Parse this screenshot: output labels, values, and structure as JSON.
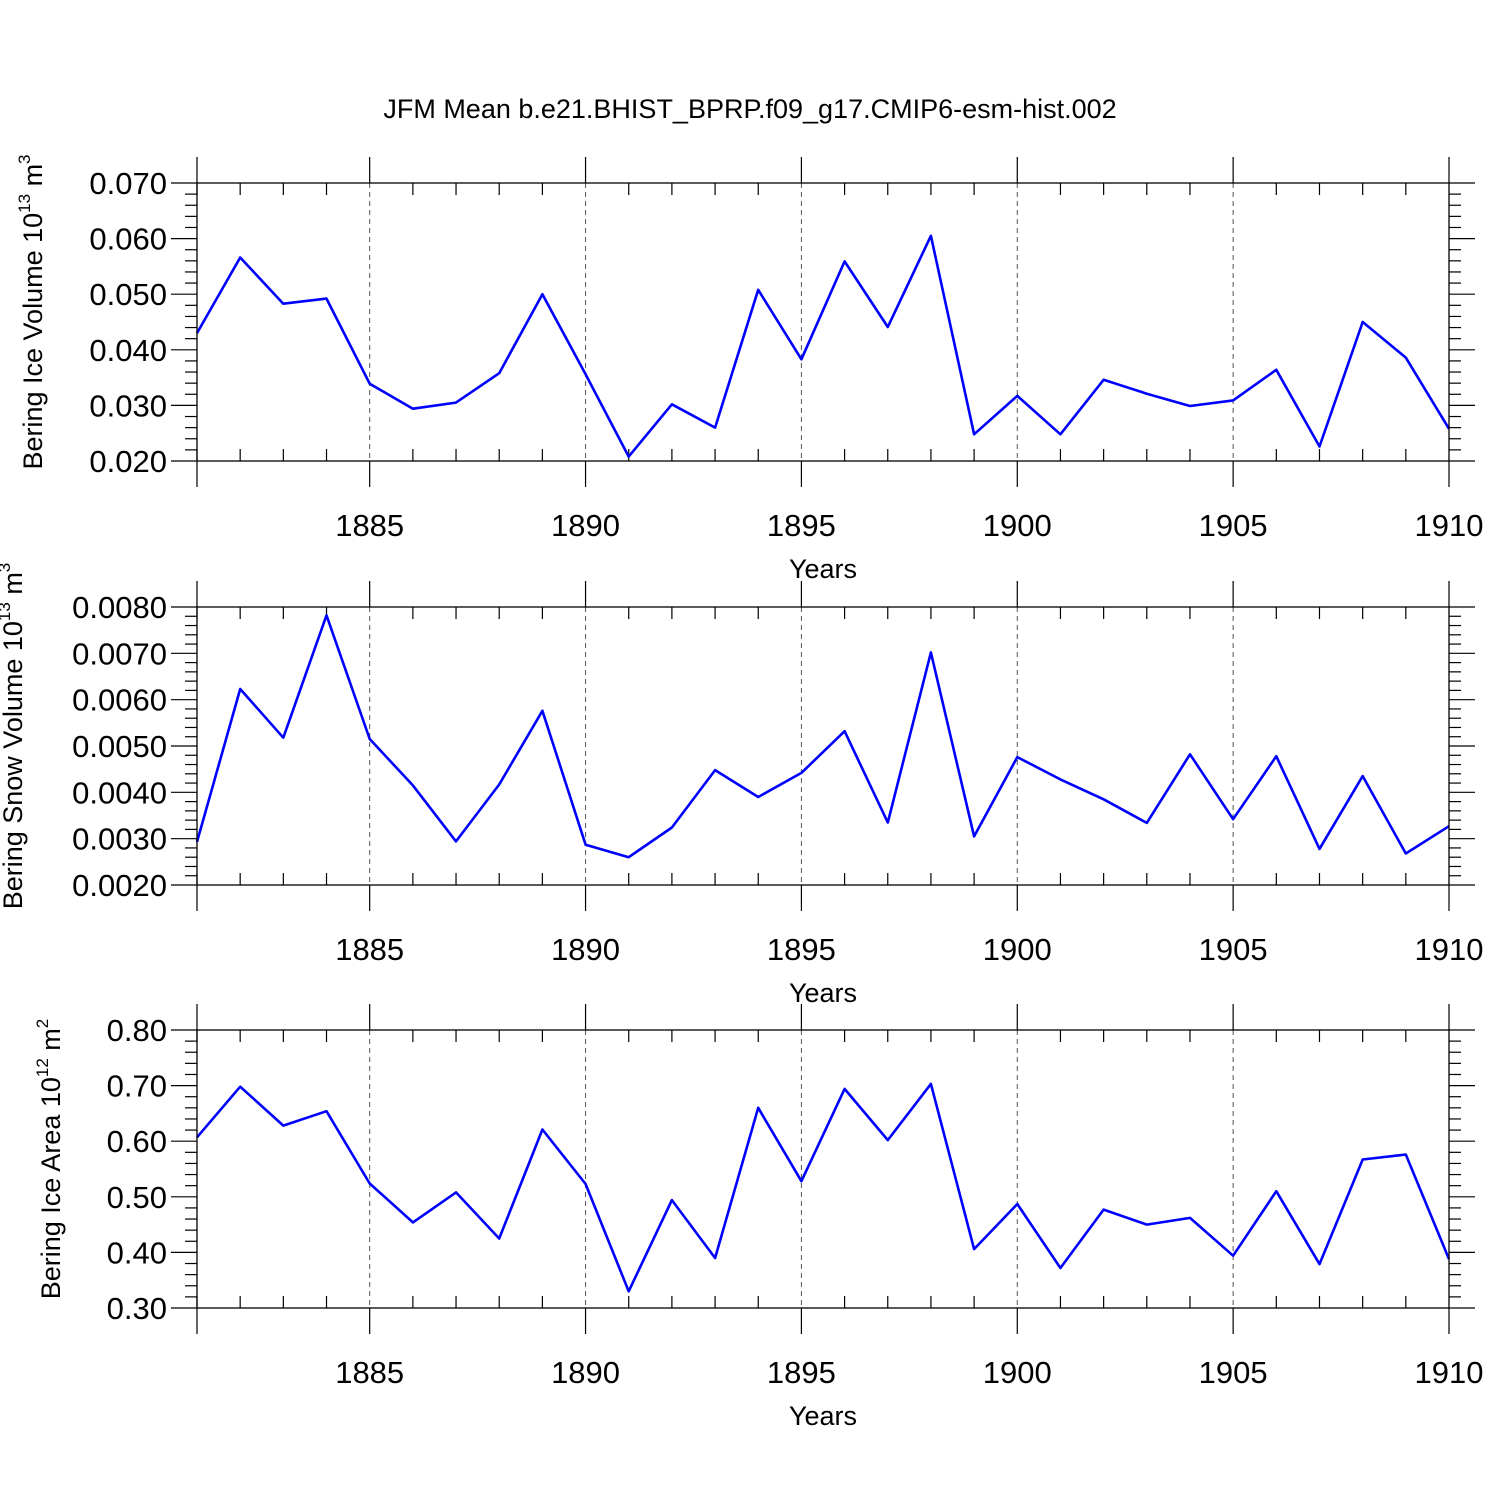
{
  "title": "JFM Mean b.e21.BHIST_BPRP.f09_g17.CMIP6-esm-hist.002",
  "colors": {
    "series": "#0000ff",
    "axis": "#000000",
    "grid": "#555555"
  },
  "chart_data": [
    {
      "type": "line",
      "ylabel": "Bering Ice Volume 10^13 m^3",
      "ylabel_parts": {
        "base": "Bering Ice Volume 10",
        "exp1": "13",
        "unit": " m",
        "exp2": "3"
      },
      "xlabel": "Years",
      "xlim": [
        1881,
        1910
      ],
      "ylim": [
        0.02,
        0.07
      ],
      "y_ticks": [
        0.02,
        0.03,
        0.04,
        0.05,
        0.06,
        0.07
      ],
      "y_tick_labels": [
        "0.020",
        "0.030",
        "0.040",
        "0.050",
        "0.060",
        "0.070"
      ],
      "x_ticks": [
        1885,
        1890,
        1895,
        1900,
        1905,
        1910
      ],
      "x_tick_labels": [
        "1885",
        "1890",
        "1895",
        "1900",
        "1905",
        "1910"
      ],
      "grid": "vertical dashed at major x ticks",
      "x": [
        1881,
        1882,
        1883,
        1884,
        1885,
        1886,
        1887,
        1888,
        1889,
        1890,
        1891,
        1892,
        1893,
        1894,
        1895,
        1896,
        1897,
        1898,
        1899,
        1900,
        1901,
        1902,
        1903,
        1904,
        1905,
        1906,
        1907,
        1908,
        1909,
        1910
      ],
      "values": [
        0.043,
        0.0566,
        0.0483,
        0.0492,
        0.0339,
        0.0294,
        0.0305,
        0.0358,
        0.05,
        0.0356,
        0.0208,
        0.0302,
        0.026,
        0.0508,
        0.0383,
        0.0559,
        0.0441,
        0.0605,
        0.0248,
        0.0317,
        0.0248,
        0.0346,
        0.0321,
        0.0299,
        0.0309,
        0.0364,
        0.0226,
        0.045,
        0.0386,
        0.0258
      ]
    },
    {
      "type": "line",
      "ylabel": "Bering Snow Volume 10^13 m^3",
      "ylabel_parts": {
        "base": "Bering Snow Volume 10",
        "exp1": "13",
        "unit": " m",
        "exp2": "3"
      },
      "xlabel": "Years",
      "xlim": [
        1881,
        1910
      ],
      "ylim": [
        0.002,
        0.008
      ],
      "y_ticks": [
        0.002,
        0.003,
        0.004,
        0.005,
        0.006,
        0.007,
        0.008
      ],
      "y_tick_labels": [
        "0.0020",
        "0.0030",
        "0.0040",
        "0.0050",
        "0.0060",
        "0.0070",
        "0.0080"
      ],
      "x_ticks": [
        1885,
        1890,
        1895,
        1900,
        1905,
        1910
      ],
      "x_tick_labels": [
        "1885",
        "1890",
        "1895",
        "1900",
        "1905",
        "1910"
      ],
      "grid": "vertical dashed at major x ticks",
      "x": [
        1881,
        1882,
        1883,
        1884,
        1885,
        1886,
        1887,
        1888,
        1889,
        1890,
        1891,
        1892,
        1893,
        1894,
        1895,
        1896,
        1897,
        1898,
        1899,
        1900,
        1901,
        1902,
        1903,
        1904,
        1905,
        1906,
        1907,
        1908,
        1909,
        1910
      ],
      "values": [
        0.00293,
        0.00623,
        0.00518,
        0.00782,
        0.00515,
        0.00415,
        0.00294,
        0.00417,
        0.00576,
        0.00287,
        0.0026,
        0.00324,
        0.00448,
        0.0039,
        0.00442,
        0.00532,
        0.00335,
        0.00702,
        0.00305,
        0.00476,
        0.00428,
        0.00385,
        0.00334,
        0.00482,
        0.00342,
        0.00478,
        0.00278,
        0.00435,
        0.00268,
        0.00327
      ]
    },
    {
      "type": "line",
      "ylabel": "Bering Ice Area 10^12 m^2",
      "ylabel_parts": {
        "base": "Bering Ice Area 10",
        "exp1": "12",
        "unit": " m",
        "exp2": "2"
      },
      "xlabel": "Years",
      "xlim": [
        1881,
        1910
      ],
      "ylim": [
        0.3,
        0.8
      ],
      "y_ticks": [
        0.3,
        0.4,
        0.5,
        0.6,
        0.7,
        0.8
      ],
      "y_tick_labels": [
        "0.30",
        "0.40",
        "0.50",
        "0.60",
        "0.70",
        "0.80"
      ],
      "x_ticks": [
        1885,
        1890,
        1895,
        1900,
        1905,
        1910
      ],
      "x_tick_labels": [
        "1885",
        "1890",
        "1895",
        "1900",
        "1905",
        "1910"
      ],
      "grid": "vertical dashed at major x ticks",
      "x": [
        1881,
        1882,
        1883,
        1884,
        1885,
        1886,
        1887,
        1888,
        1889,
        1890,
        1891,
        1892,
        1893,
        1894,
        1895,
        1896,
        1897,
        1898,
        1899,
        1900,
        1901,
        1902,
        1903,
        1904,
        1905,
        1906,
        1907,
        1908,
        1909,
        1910
      ],
      "values": [
        0.607,
        0.698,
        0.628,
        0.654,
        0.524,
        0.454,
        0.508,
        0.425,
        0.621,
        0.523,
        0.33,
        0.494,
        0.39,
        0.66,
        0.528,
        0.694,
        0.602,
        0.703,
        0.406,
        0.487,
        0.372,
        0.477,
        0.45,
        0.462,
        0.394,
        0.51,
        0.379,
        0.567,
        0.576,
        0.388
      ]
    }
  ]
}
